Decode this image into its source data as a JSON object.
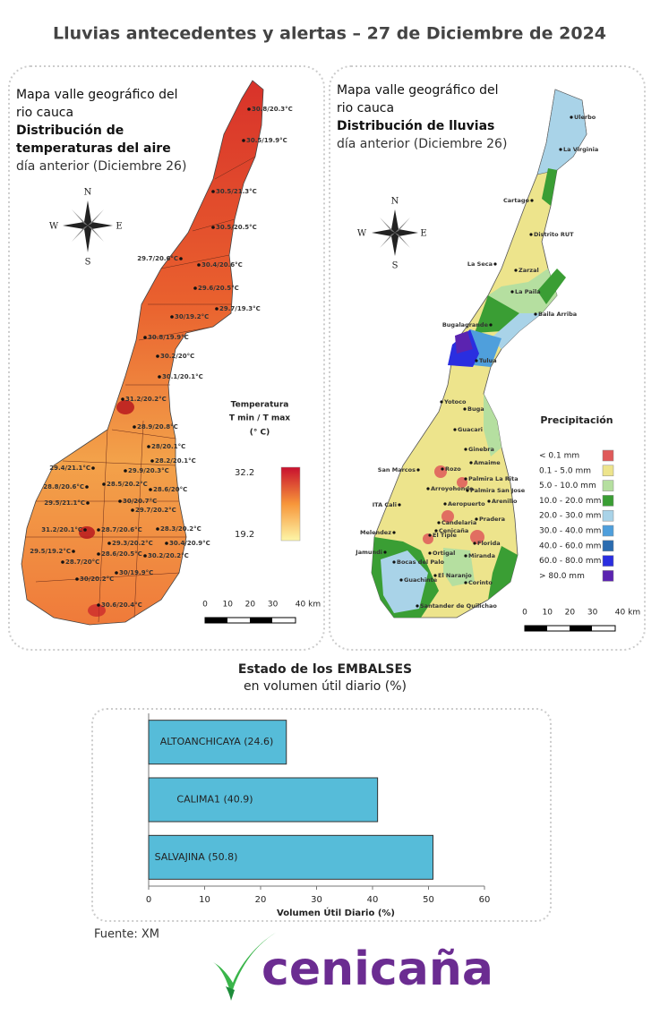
{
  "header": {
    "title": "Lluvias antecedentes y alertas – 27 de Diciembre de 2024"
  },
  "temperature_map": {
    "title_lines": [
      "Mapa valle geográfico del",
      "rio cauca",
      "Distribución de",
      "temperaturas del aire"
    ],
    "date": "día anterior (Diciembre 26)",
    "compass": {
      "n": "N",
      "s": "S",
      "e": "E",
      "w": "W"
    },
    "stations": [
      "30.8/20.3°C",
      "30.5/19.9°C",
      "30.5/21.3°C",
      "30.5/20.5°C",
      "29.7/20.6°C",
      "30.4/20.6°C",
      "29.6/20.5°C",
      "29.7/19.3°C",
      "30/19.2°C",
      "30.8/19.9°C",
      "30.2/20°C",
      "30.1/20.1°C",
      "31.2/20.2°C",
      "28.9/20.8°C",
      "28/20.1°C",
      "28.2/20.1°C",
      "29.4/21.1°C",
      "29.9/20.3°C",
      "28.5/20.2°C",
      "28.6/20°C",
      "28.8/20.6°C",
      "30/20.7°C",
      "29.5/21.1°C",
      "29.7/20.2°C",
      "31.2/20.1°C",
      "28.7/20.6°C",
      "28.3/20.2°C",
      "29.3/20.2°C",
      "30.4/20.9°C",
      "29.5/19.2°C",
      "28.6/20.5°C",
      "30.2/20.2°C",
      "28.7/20°C",
      "30/19.9°C",
      "30/20.2°C",
      "30.6/20.4°C"
    ],
    "legend": {
      "title_lines": [
        "Temperatura",
        "T min / T max",
        "(° C)"
      ],
      "max": "32.2",
      "min": "19.2"
    },
    "scale": [
      "0",
      "10",
      "20",
      "30",
      "40 km"
    ]
  },
  "rain_map": {
    "title_lines": [
      "Mapa valle geográfico del",
      "rio cauca"
    ],
    "subtitle": "Distribución de lluvias",
    "date": "día anterior (Diciembre 26)",
    "compass": {
      "n": "N",
      "s": "S",
      "e": "E",
      "w": "W"
    },
    "towns": [
      "Ulerbo",
      "La Virginia",
      "Cartago",
      "Distrito RUT",
      "La Seca",
      "Zarzal",
      "La Paila",
      "Baila Arriba",
      "Bugalagrande",
      "Tulua",
      "Yotoco",
      "Buga",
      "Guacari",
      "Ginebra",
      "Amaime",
      "San Marcos",
      "Rozo",
      "Palmira La Rita",
      "Arroyohondo",
      "Palmira San Jose",
      "Aeropuerto",
      "Arenillo",
      "ITA Cali",
      "Candelaria",
      "Pradera",
      "Melendez",
      "El Tiple",
      "Cenicaña",
      "Florida",
      "Jamundi",
      "Bocas del Palo",
      "Ortigal",
      "Miranda",
      "Guachinte",
      "El Naranjo",
      "Corinto",
      "Santander de Quilichao"
    ],
    "legend": {
      "title": "Precipitación",
      "classes": [
        {
          "label": "< 0.1 mm",
          "color": "#e05a5a"
        },
        {
          "label": "0.1 - 5.0 mm",
          "color": "#ede48c"
        },
        {
          "label": "5.0 - 10.0 mm",
          "color": "#b5dfa0"
        },
        {
          "label": "10.0 - 20.0 mm",
          "color": "#3a9e34"
        },
        {
          "label": "20.0 - 30.0 mm",
          "color": "#a9d3e8"
        },
        {
          "label": "30.0 - 40.0 mm",
          "color": "#4f9fdc"
        },
        {
          "label": "40.0 - 60.0 mm",
          "color": "#2b6cb0"
        },
        {
          "label": "60.0 - 80.0 mm",
          "color": "#2a2ee0"
        },
        {
          "label": "> 80.0 mm",
          "color": "#5b23b0"
        }
      ]
    },
    "scale": [
      "0",
      "10",
      "20",
      "30",
      "40 km"
    ]
  },
  "chart_data": {
    "type": "barh",
    "title": "Estado de los EMBALSES",
    "subtitle": "en volumen útil diario (%)",
    "categories": [
      "ALTOANCHICAYA (24.6)",
      "CALIMA1 (40.9)",
      "SALVAJINA (50.8)"
    ],
    "values": [
      24.6,
      40.9,
      50.8
    ],
    "color": "#56bcd9",
    "xlim": [
      0,
      60
    ],
    "xticks": [
      0,
      10,
      20,
      30,
      40,
      50,
      60
    ],
    "xlabel": "Volumen Útil Diario (%)"
  },
  "source": "Fuente: XM",
  "logo": "cenicaña"
}
